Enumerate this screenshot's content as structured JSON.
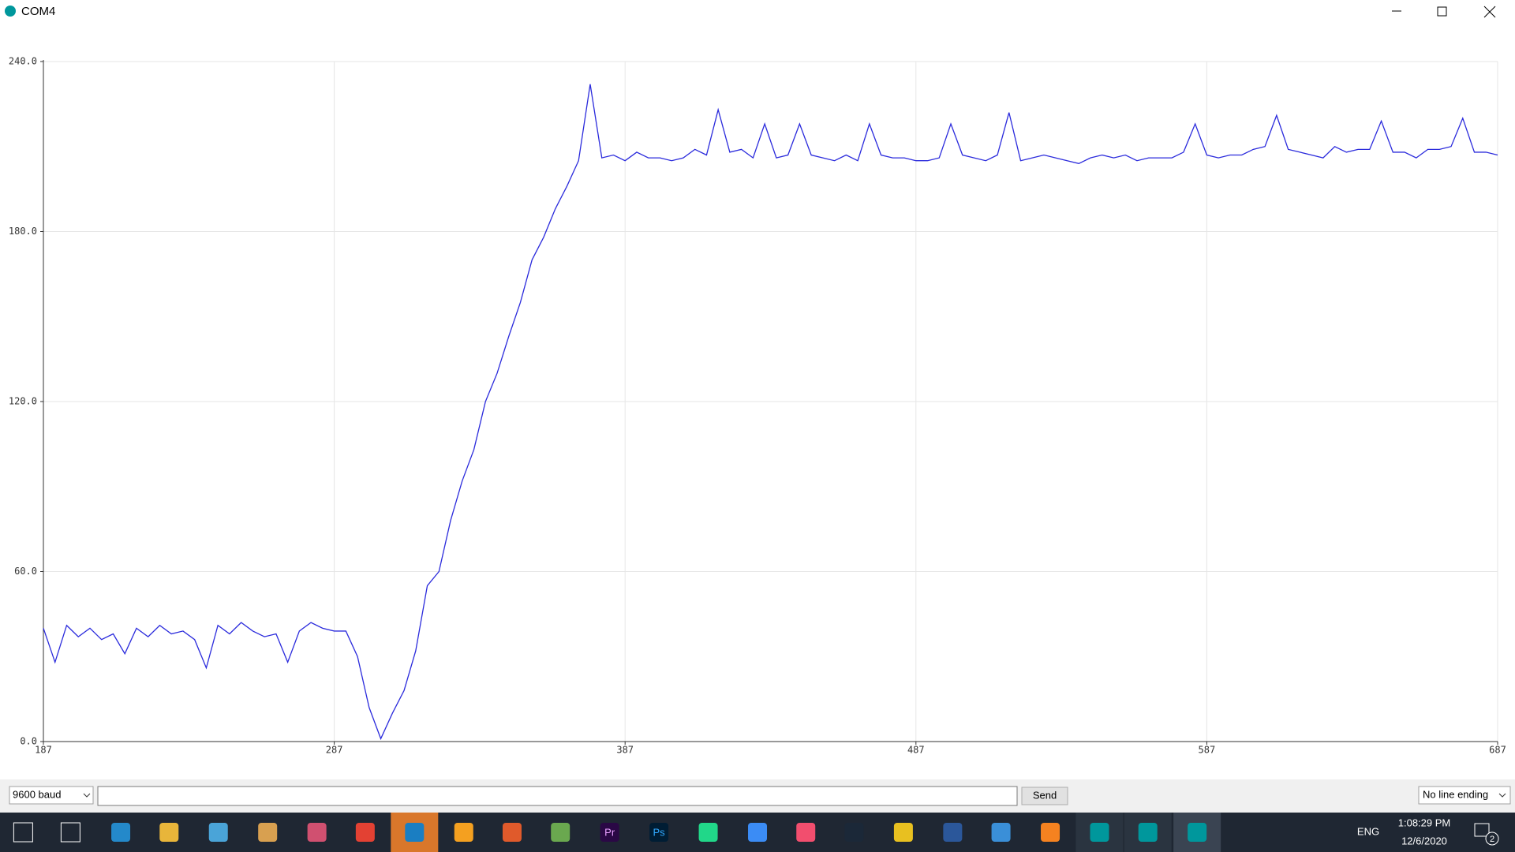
{
  "window": {
    "title": "COM4"
  },
  "chart_data": {
    "type": "line",
    "x": [
      187,
      191,
      195,
      199,
      203,
      207,
      211,
      215,
      219,
      223,
      227,
      231,
      235,
      239,
      243,
      247,
      251,
      255,
      259,
      263,
      267,
      271,
      275,
      279,
      283,
      287,
      291,
      295,
      299,
      303,
      307,
      311,
      315,
      319,
      323,
      327,
      331,
      335,
      339,
      343,
      347,
      351,
      355,
      359,
      363,
      367,
      371,
      375,
      379,
      383,
      387,
      391,
      395,
      399,
      403,
      407,
      411,
      415,
      419,
      423,
      427,
      431,
      435,
      439,
      443,
      447,
      451,
      455,
      459,
      463,
      467,
      471,
      475,
      479,
      483,
      487,
      491,
      495,
      499,
      503,
      507,
      511,
      515,
      519,
      523,
      527,
      531,
      535,
      539,
      543,
      547,
      551,
      555,
      559,
      563,
      567,
      571,
      575,
      579,
      583,
      587,
      591,
      595,
      599,
      603,
      607,
      611,
      615,
      619,
      623,
      627,
      631,
      635,
      639,
      643,
      647,
      651,
      655,
      659,
      663,
      667,
      671,
      675,
      679,
      683,
      687
    ],
    "series": [
      {
        "color": "#2b2bdc",
        "values": [
          40,
          28,
          41,
          37,
          40,
          36,
          38,
          31,
          40,
          37,
          41,
          38,
          39,
          36,
          26,
          41,
          38,
          42,
          39,
          37,
          38,
          28,
          39,
          42,
          40,
          39,
          39,
          30,
          12,
          1,
          10,
          18,
          32,
          55,
          60,
          78,
          92,
          103,
          120,
          130,
          143,
          155,
          170,
          178,
          188,
          196,
          205,
          232,
          206,
          207,
          205,
          208,
          206,
          206,
          205,
          206,
          209,
          207,
          223,
          208,
          209,
          206,
          218,
          206,
          207,
          218,
          207,
          206,
          205,
          207,
          205,
          218,
          207,
          206,
          206,
          205,
          205,
          206,
          218,
          207,
          206,
          205,
          207,
          222,
          205,
          206,
          207,
          206,
          205,
          204,
          206,
          207,
          206,
          207,
          205,
          206,
          206,
          206,
          208,
          218,
          207,
          206,
          207,
          207,
          209,
          210,
          221,
          209,
          208,
          207,
          206,
          210,
          208,
          209,
          209,
          219,
          208,
          208,
          206,
          209,
          209,
          210,
          220,
          208,
          208,
          207
        ]
      }
    ],
    "xlim": [
      187,
      687
    ],
    "ylim": [
      0,
      240
    ],
    "xticks": [
      187,
      287,
      387,
      487,
      587,
      687
    ],
    "yticks": [
      {
        "value": 0,
        "label": "0.0"
      },
      {
        "value": 60,
        "label": "60.0"
      },
      {
        "value": 120,
        "label": "120.0"
      },
      {
        "value": 180,
        "label": "180.0"
      },
      {
        "value": 240,
        "label": "240.0"
      }
    ],
    "grid": true
  },
  "controls": {
    "baud": "9600 baud",
    "send": "Send",
    "line_ending": "No line ending"
  },
  "taskbar": {
    "premiere": "Pr",
    "photoshop": "Ps",
    "language": "ENG",
    "time": "1:08:29 PM",
    "date": "12/6/2020",
    "notifications": "2"
  }
}
